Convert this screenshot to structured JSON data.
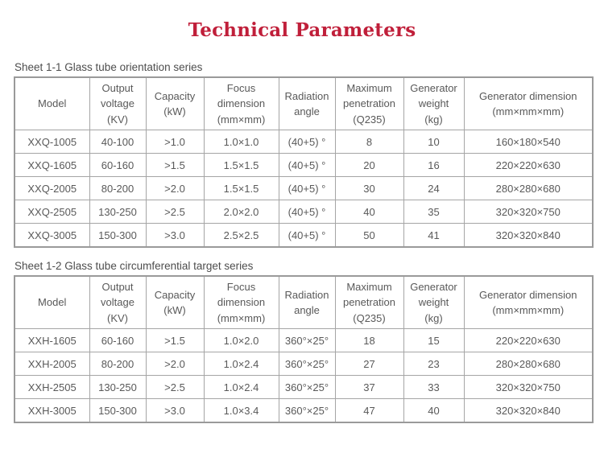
{
  "page": {
    "title": "Technical Parameters",
    "title_color": "#c01f3a",
    "text_color": "#595959",
    "border_color": "#9a9a9a"
  },
  "tables": [
    {
      "caption": "Sheet 1-1 Glass tube orientation series",
      "headers": [
        "Model",
        "Output\nvoltage\n(KV)",
        "Capacity\n(kW)",
        "Focus\ndimension\n(mm×mm)",
        "Radiation\nangle",
        "Maximum\npenetration\n(Q235)",
        "Generator\nweight\n(kg)",
        "Generator dimension\n(mm×mm×mm)"
      ],
      "rows": [
        [
          "XXQ-1005",
          "40-100",
          ">1.0",
          "1.0×1.0",
          "(40+5) °",
          "8",
          "10",
          "160×180×540"
        ],
        [
          "XXQ-1605",
          "60-160",
          ">1.5",
          "1.5×1.5",
          "(40+5) °",
          "20",
          "16",
          "220×220×630"
        ],
        [
          "XXQ-2005",
          "80-200",
          ">2.0",
          "1.5×1.5",
          "(40+5) °",
          "30",
          "24",
          "280×280×680"
        ],
        [
          "XXQ-2505",
          "130-250",
          ">2.5",
          "2.0×2.0",
          "(40+5) °",
          "40",
          "35",
          "320×320×750"
        ],
        [
          "XXQ-3005",
          "150-300",
          ">3.0",
          "2.5×2.5",
          "(40+5) °",
          "50",
          "41",
          "320×320×840"
        ]
      ]
    },
    {
      "caption": "Sheet 1-2 Glass tube circumferential target series",
      "headers": [
        "Model",
        "Output\nvoltage\n(KV)",
        "Capacity\n(kW)",
        "Focus\ndimension\n(mm×mm)",
        "Radiation\nangle",
        "Maximum\npenetration\n(Q235)",
        "Generator\nweight\n(kg)",
        "Generator dimension\n(mm×mm×mm)"
      ],
      "rows": [
        [
          "XXH-1605",
          "60-160",
          ">1.5",
          "1.0×2.0",
          "360°×25°",
          "18",
          "15",
          "220×220×630"
        ],
        [
          "XXH-2005",
          "80-200",
          ">2.0",
          "1.0×2.4",
          "360°×25°",
          "27",
          "23",
          "280×280×680"
        ],
        [
          "XXH-2505",
          "130-250",
          ">2.5",
          "1.0×2.4",
          "360°×25°",
          "37",
          "33",
          "320×320×750"
        ],
        [
          "XXH-3005",
          "150-300",
          ">3.0",
          "1.0×3.4",
          "360°×25°",
          "47",
          "40",
          "320×320×840"
        ]
      ]
    }
  ]
}
